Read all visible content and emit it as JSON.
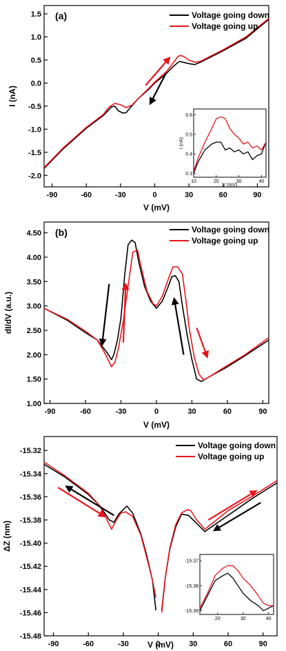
{
  "colors": {
    "down": "#000000",
    "up": "#e8141b"
  },
  "chart_data": [
    {
      "type": "line",
      "panel_label": "(a)",
      "xlabel": "V (mV)",
      "ylabel": "I (nA)",
      "xlim": [
        -97,
        100
      ],
      "ylim": [
        -2.25,
        1.68
      ],
      "xticks": [
        -90,
        -60,
        -30,
        0,
        30,
        60,
        90
      ],
      "yticks": [
        -2.0,
        -1.5,
        -1.0,
        -0.5,
        0.0,
        0.5,
        1.0,
        1.5
      ],
      "xtick_labels": [
        "-90",
        "-60",
        "-30",
        "0",
        "30",
        "60",
        "90"
      ],
      "ytick_labels": [
        "-2.0",
        "-1.5",
        "-1.0",
        "-0.5",
        "0.0",
        "0.5",
        "1.0",
        "1.5"
      ],
      "legend": [
        "Voltage going down",
        "Voltage going up"
      ],
      "legend_position": "top-right",
      "series": [
        {
          "name": "Voltage going down",
          "color": "#000000",
          "x": [
            -97,
            -80,
            -60,
            -45,
            -38,
            -35,
            -32,
            -28,
            -25,
            -22,
            -15,
            -5,
            0,
            10,
            15,
            20,
            22,
            25,
            30,
            35,
            40,
            60,
            80,
            100
          ],
          "y": [
            -1.85,
            -1.42,
            -0.98,
            -0.7,
            -0.52,
            -0.5,
            -0.6,
            -0.65,
            -0.64,
            -0.55,
            -0.35,
            -0.13,
            0.0,
            0.2,
            0.33,
            0.44,
            0.47,
            0.45,
            0.42,
            0.4,
            0.45,
            0.7,
            0.97,
            1.38
          ]
        },
        {
          "name": "Voltage going up",
          "color": "#e8141b",
          "x": [
            -97,
            -80,
            -60,
            -45,
            -40,
            -35,
            -30,
            -25,
            -20,
            -15,
            -5,
            0,
            10,
            15,
            20,
            22,
            25,
            30,
            35,
            40,
            60,
            80,
            100
          ],
          "y": [
            -1.83,
            -1.4,
            -0.96,
            -0.68,
            -0.52,
            -0.44,
            -0.47,
            -0.53,
            -0.48,
            -0.35,
            -0.11,
            0.02,
            0.24,
            0.4,
            0.56,
            0.6,
            0.58,
            0.5,
            0.45,
            0.47,
            0.72,
            1.0,
            1.4
          ]
        }
      ],
      "annotations": [
        {
          "type": "arrow",
          "color": "#e8141b",
          "from": [
            -8,
            -0.05
          ],
          "to": [
            13,
            0.55
          ]
        },
        {
          "type": "arrow",
          "color": "#000000",
          "from": [
            10,
            0.22
          ],
          "to": [
            -4,
            -0.45
          ]
        }
      ],
      "inset": {
        "xlabel": "V (mV)",
        "ylabel": "I (nA)",
        "xlim": [
          10,
          42
        ],
        "ylim": [
          0.28,
          0.63
        ],
        "xticks": [
          10,
          20,
          30,
          40
        ],
        "yticks": [
          0.3,
          0.4,
          0.5,
          0.6
        ],
        "xtick_labels": [
          "10",
          "20",
          "30",
          "40"
        ],
        "ytick_labels": [
          "0.3",
          "0.4",
          "0.5",
          "0.6"
        ],
        "series": [
          {
            "name": "Voltage going down",
            "color": "#000000",
            "x": [
              10,
              12,
              15,
              18,
              20,
              22,
              24,
              26,
              28,
              30,
              32,
              34,
              36,
              38,
              40,
              42
            ],
            "y": [
              0.3,
              0.36,
              0.42,
              0.45,
              0.46,
              0.46,
              0.42,
              0.43,
              0.41,
              0.42,
              0.4,
              0.41,
              0.37,
              0.39,
              0.4,
              0.46
            ]
          },
          {
            "name": "Voltage going up",
            "color": "#e8141b",
            "x": [
              10,
              12,
              15,
              18,
              20,
              22,
              24,
              26,
              28,
              30,
              32,
              34,
              36,
              38,
              40,
              42
            ],
            "y": [
              0.31,
              0.38,
              0.46,
              0.53,
              0.58,
              0.59,
              0.58,
              0.53,
              0.5,
              0.48,
              0.45,
              0.46,
              0.43,
              0.44,
              0.42,
              0.46
            ]
          }
        ]
      }
    },
    {
      "type": "line",
      "panel_label": "(b)",
      "xlabel": "V (mV)",
      "ylabel": "dI/dV (a.u.)",
      "xlim": [
        -95,
        95
      ],
      "ylim": [
        1.0,
        4.72
      ],
      "xticks": [
        -90,
        -60,
        -30,
        0,
        30,
        60,
        90
      ],
      "yticks": [
        1.0,
        1.5,
        2.0,
        2.5,
        3.0,
        3.5,
        4.0,
        4.5
      ],
      "xtick_labels": [
        "-90",
        "-60",
        "-30",
        "0",
        "30",
        "60",
        "90"
      ],
      "ytick_labels": [
        "1.00",
        "1.50",
        "2.00",
        "2.50",
        "3.00",
        "3.50",
        "4.00",
        "4.50"
      ],
      "legend": [
        "Voltage going down",
        "Voltage going up"
      ],
      "legend_position": "top-right",
      "series": [
        {
          "name": "Voltage going down",
          "color": "#000000",
          "x": [
            -95,
            -75,
            -60,
            -50,
            -42,
            -38,
            -36,
            -33,
            -30,
            -27,
            -24,
            -21,
            -18,
            -15,
            -10,
            -5,
            0,
            5,
            10,
            13,
            16,
            19,
            22,
            26,
            30,
            34,
            38,
            45,
            60,
            75,
            95
          ],
          "y": [
            2.95,
            2.7,
            2.45,
            2.3,
            2.05,
            1.9,
            2.0,
            2.3,
            2.75,
            3.6,
            4.25,
            4.35,
            4.3,
            3.9,
            3.4,
            3.1,
            2.95,
            3.1,
            3.4,
            3.6,
            3.62,
            3.5,
            3.0,
            2.4,
            1.9,
            1.5,
            1.45,
            1.55,
            1.75,
            1.98,
            2.3
          ]
        },
        {
          "name": "Voltage going up",
          "color": "#e8141b",
          "x": [
            -95,
            -75,
            -60,
            -50,
            -44,
            -40,
            -38,
            -35,
            -32,
            -28,
            -24,
            -20,
            -16,
            -13,
            -8,
            -3,
            0,
            5,
            10,
            14,
            18,
            22,
            25,
            28,
            32,
            36,
            40,
            45,
            60,
            75,
            95
          ],
          "y": [
            2.95,
            2.72,
            2.48,
            2.3,
            2.05,
            1.85,
            1.75,
            1.85,
            2.15,
            2.7,
            3.4,
            4.1,
            4.15,
            3.8,
            3.3,
            3.05,
            3.0,
            3.2,
            3.55,
            3.8,
            3.8,
            3.65,
            3.1,
            2.5,
            1.95,
            1.6,
            1.48,
            1.55,
            1.78,
            2.0,
            2.35
          ]
        }
      ],
      "annotations": [
        {
          "type": "arrow",
          "color": "#000000",
          "from": [
            -40,
            3.45
          ],
          "to": [
            -46,
            2.2
          ]
        },
        {
          "type": "arrow",
          "color": "#e8141b",
          "from": [
            -28,
            2.25
          ],
          "to": [
            -26,
            3.45
          ]
        },
        {
          "type": "arrow",
          "color": "#000000",
          "from": [
            23,
            2.0
          ],
          "to": [
            15,
            3.15
          ]
        },
        {
          "type": "arrow",
          "color": "#e8141b",
          "from": [
            34,
            2.55
          ],
          "to": [
            43,
            1.95
          ]
        }
      ]
    },
    {
      "type": "line",
      "panel_label": "",
      "xlabel": "V (mV)",
      "ylabel": "ΔZ (nm)",
      "xlim": [
        -98,
        102
      ],
      "ylim": [
        -15.48,
        -15.308
      ],
      "xticks": [
        -90,
        -60,
        -30,
        0,
        30,
        60,
        90
      ],
      "yticks": [
        -15.48,
        -15.46,
        -15.44,
        -15.42,
        -15.4,
        -15.38,
        -15.36,
        -15.34,
        -15.32
      ],
      "xtick_labels": [
        "-90",
        "-60",
        "-30",
        "0",
        "30",
        "60",
        "90"
      ],
      "ytick_labels": [
        "-15.48",
        "-15.46",
        "-15.44",
        "-15.42",
        "-15.40",
        "-15.38",
        "-15.36",
        "-15.34",
        "-15.32"
      ],
      "legend": [
        "Voltage going down",
        "Voltage going up"
      ],
      "legend_position": "top-right",
      "series": [
        {
          "name": "Voltage going down",
          "color": "#000000",
          "x": [
            -98,
            -80,
            -60,
            -50,
            -42,
            -38,
            -34,
            -30,
            -27,
            -22,
            -15,
            -10,
            -5,
            -2
          ],
          "y": [
            -15.332,
            -15.343,
            -15.358,
            -15.368,
            -15.38,
            -15.382,
            -15.375,
            -15.371,
            -15.368,
            -15.374,
            -15.392,
            -15.41,
            -15.432,
            -15.458
          ]
        },
        {
          "name": "Voltage going down",
          "color": "#000000",
          "x": [
            3,
            6,
            10,
            15,
            20,
            26,
            30,
            34,
            40,
            50,
            60,
            80,
            102
          ],
          "y": [
            -15.458,
            -15.43,
            -15.405,
            -15.386,
            -15.375,
            -15.376,
            -15.38,
            -15.384,
            -15.39,
            -15.383,
            -15.376,
            -15.362,
            -15.348
          ]
        },
        {
          "name": "Voltage going up",
          "color": "#e8141b",
          "x": [
            -98,
            -80,
            -60,
            -50,
            -42,
            -40,
            -36,
            -32,
            -28,
            -22,
            -15,
            -10,
            -5,
            -2
          ],
          "y": [
            -15.33,
            -15.342,
            -15.357,
            -15.368,
            -15.384,
            -15.388,
            -15.38,
            -15.374,
            -15.373,
            -15.377,
            -15.393,
            -15.412,
            -15.432,
            -15.447
          ]
        },
        {
          "name": "Voltage going up",
          "color": "#e8141b",
          "x": [
            3,
            6,
            10,
            15,
            20,
            25,
            28,
            33,
            40,
            50,
            60,
            80,
            102
          ],
          "y": [
            -15.46,
            -15.43,
            -15.404,
            -15.384,
            -15.374,
            -15.371,
            -15.372,
            -15.38,
            -15.388,
            -15.38,
            -15.372,
            -15.36,
            -15.346
          ]
        }
      ],
      "annotations": [
        {
          "type": "arrow",
          "color": "#000000",
          "from": [
            -38,
            -15.376
          ],
          "to": [
            -79,
            -15.351
          ]
        },
        {
          "type": "arrow",
          "color": "#e8141b",
          "from": [
            -86,
            -15.352
          ],
          "to": [
            -46,
            -15.377
          ]
        },
        {
          "type": "arrow",
          "color": "#e8141b",
          "from": [
            43,
            -15.38
          ],
          "to": [
            84,
            -15.355
          ]
        },
        {
          "type": "arrow",
          "color": "#000000",
          "from": [
            88,
            -15.365
          ],
          "to": [
            48,
            -15.389
          ]
        }
      ],
      "inset": {
        "xlabel": "",
        "ylabel": "",
        "xlim": [
          13,
          42
        ],
        "ylim": [
          -15.3915,
          -15.3675
        ],
        "xticks": [
          20,
          30,
          40
        ],
        "yticks": [
          -15.37,
          -15.38,
          -15.39
        ],
        "xtick_labels": [
          "20",
          "30",
          "40"
        ],
        "ytick_labels": [
          "-15.37",
          "-15.38",
          "-15.39"
        ],
        "series": [
          {
            "name": "Voltage going down",
            "color": "#000000",
            "x": [
              13,
              16,
              19,
              22,
              24,
              26,
              28,
              30,
              33,
              36,
              38,
              40,
              42
            ],
            "y": [
              -15.39,
              -15.384,
              -15.378,
              -15.376,
              -15.375,
              -15.377,
              -15.38,
              -15.383,
              -15.386,
              -15.388,
              -15.39,
              -15.389,
              -15.388
            ]
          },
          {
            "name": "Voltage going up",
            "color": "#e8141b",
            "x": [
              13,
              16,
              19,
              22,
              24,
              26,
              28,
              30,
              33,
              36,
              38,
              40,
              42
            ],
            "y": [
              -15.389,
              -15.383,
              -15.376,
              -15.373,
              -15.372,
              -15.372,
              -15.374,
              -15.377,
              -15.38,
              -15.384,
              -15.387,
              -15.388,
              -15.388
            ]
          }
        ]
      }
    }
  ]
}
